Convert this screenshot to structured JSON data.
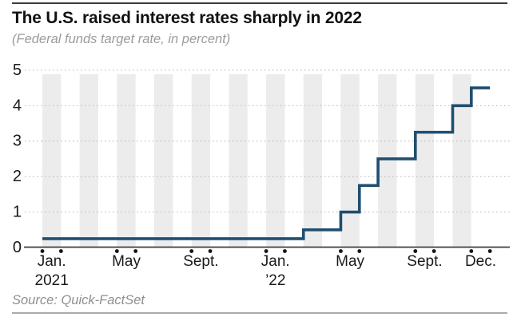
{
  "header": {
    "title": "The U.S. raised interest rates sharply in 2022",
    "subtitle": "(Federal funds target rate, in percent)"
  },
  "source": {
    "text": "Source: Quick-FactSet"
  },
  "colors": {
    "line": "#1f4e70",
    "stripe": "#ececec",
    "grid": "#c0c0c0",
    "axis": "#3f3f3f",
    "tick_dot": "#141414",
    "tick_label": "#1a1a1a",
    "title": "#111111",
    "muted": "#9b9b9b",
    "top_rule": "#3c3c3c",
    "bottom_rule": "#ababab"
  },
  "chart_data": {
    "type": "line",
    "step": true,
    "title": "The U.S. raised interest rates sharply in 2022",
    "subtitle": "(Federal funds target rate, in percent)",
    "ylabel": "Federal funds target rate (percent)",
    "xlabel": "",
    "ylim": [
      0,
      5
    ],
    "yticks": [
      0,
      1,
      2,
      3,
      4,
      5
    ],
    "grid": "dotted horizontal",
    "legend": "none",
    "x": [
      "2021-01",
      "2021-02",
      "2021-03",
      "2021-04",
      "2021-05",
      "2021-06",
      "2021-07",
      "2021-08",
      "2021-09",
      "2021-10",
      "2021-11",
      "2021-12",
      "2022-01",
      "2022-02",
      "2022-03",
      "2022-04",
      "2022-05",
      "2022-06",
      "2022-07",
      "2022-08",
      "2022-09",
      "2022-10",
      "2022-11",
      "2022-12"
    ],
    "values": [
      0.25,
      0.25,
      0.25,
      0.25,
      0.25,
      0.25,
      0.25,
      0.25,
      0.25,
      0.25,
      0.25,
      0.25,
      0.25,
      0.25,
      0.5,
      0.5,
      1.0,
      1.75,
      2.5,
      2.5,
      3.25,
      3.25,
      4.0,
      4.5
    ],
    "xticks": [
      {
        "label": "Jan.",
        "sublabel": "2021",
        "month_index": 0
      },
      {
        "label": "May",
        "sublabel": "",
        "month_index": 4
      },
      {
        "label": "Sept.",
        "sublabel": "",
        "month_index": 8
      },
      {
        "label": "Jan.",
        "sublabel": "’22",
        "month_index": 12
      },
      {
        "label": "May",
        "sublabel": "",
        "month_index": 16
      },
      {
        "label": "Sept.",
        "sublabel": "",
        "month_index": 20
      },
      {
        "label": "Dec.",
        "sublabel": "",
        "month_index": 23
      }
    ],
    "stripes": "alternating month bands starting gray at Jan. 2021"
  }
}
